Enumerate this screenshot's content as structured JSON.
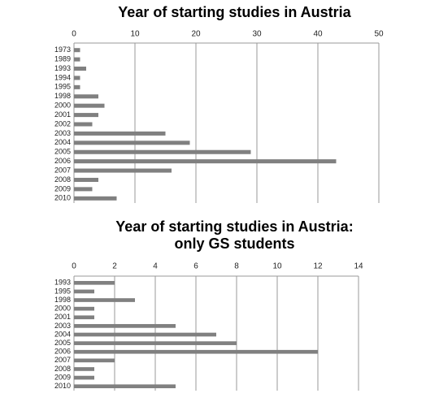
{
  "chart_data": [
    {
      "type": "bar",
      "orientation": "horizontal",
      "title": "Year of starting studies in Austria",
      "categories": [
        "1973",
        "1989",
        "1993",
        "1994",
        "1995",
        "1998",
        "2000",
        "2001",
        "2002",
        "2003",
        "2004",
        "2005",
        "2006",
        "2007",
        "2008",
        "2009",
        "2010"
      ],
      "values": [
        1,
        1,
        2,
        1,
        1,
        4,
        5,
        4,
        3,
        15,
        19,
        29,
        43,
        16,
        4,
        3,
        7
      ],
      "color": "#808080",
      "xlim": [
        0,
        50
      ],
      "xticks": [
        0,
        10,
        20,
        30,
        40,
        50
      ],
      "grid": true
    },
    {
      "type": "bar",
      "orientation": "horizontal",
      "title": [
        "Year of starting studies in Austria:",
        "only GS students"
      ],
      "categories": [
        "1993",
        "1995",
        "1998",
        "2000",
        "2001",
        "2003",
        "2004",
        "2005",
        "2006",
        "2007",
        "2008",
        "2009",
        "2010"
      ],
      "values": [
        2,
        1,
        3,
        1,
        1,
        5,
        7,
        8,
        12,
        2,
        1,
        1,
        5
      ],
      "color": "#808080",
      "xlim": [
        0,
        14
      ],
      "xticks": [
        0,
        2,
        4,
        6,
        8,
        10,
        12,
        14
      ],
      "grid": true
    }
  ]
}
